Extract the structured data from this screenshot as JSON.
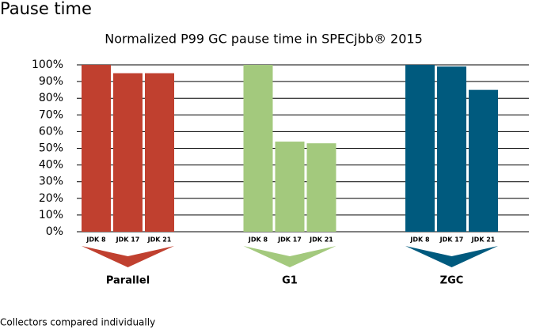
{
  "page_title": "Pause time",
  "chart_data": {
    "type": "bar",
    "title": "Normalized P99 GC pause time in SPECjbb® 2015",
    "groups": [
      {
        "name": "Parallel",
        "color": "#c0402f",
        "categories": [
          "JDK 8",
          "JDK 17",
          "JDK 21"
        ],
        "values": [
          100,
          95,
          95
        ]
      },
      {
        "name": "G1",
        "color": "#a3c97d",
        "categories": [
          "JDK 8",
          "JDK 17",
          "JDK 21"
        ],
        "values": [
          100,
          54,
          53
        ]
      },
      {
        "name": "ZGC",
        "color": "#005a7e",
        "categories": [
          "JDK 8",
          "JDK 17",
          "JDK 21"
        ],
        "values": [
          100,
          99,
          85
        ]
      }
    ],
    "ylim": [
      0,
      100
    ],
    "yticks": [
      {
        "value": 0,
        "label": "0%"
      },
      {
        "value": 10,
        "label": "10%"
      },
      {
        "value": 20,
        "label": "20%"
      },
      {
        "value": 30,
        "label": "30%"
      },
      {
        "value": 40,
        "label": "40%"
      },
      {
        "value": 50,
        "label": "50%"
      },
      {
        "value": 60,
        "label": "60%"
      },
      {
        "value": 70,
        "label": "70%"
      },
      {
        "value": 80,
        "label": "80%"
      },
      {
        "value": 90,
        "label": "90%"
      },
      {
        "value": 100,
        "label": "100%"
      }
    ],
    "grid": true,
    "footnote": "Collectors compared individually"
  }
}
